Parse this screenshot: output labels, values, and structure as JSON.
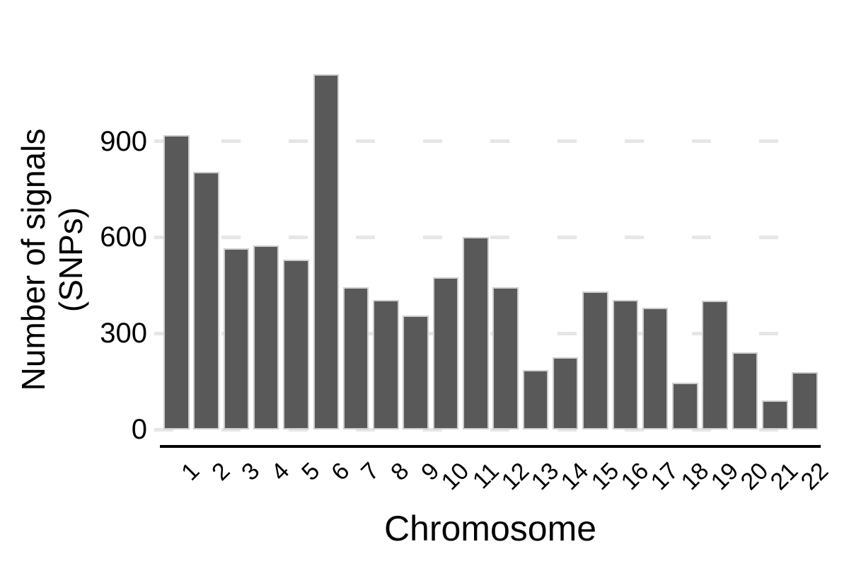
{
  "figure": {
    "background": "#ffffff"
  },
  "chart_data": {
    "type": "bar",
    "title": "",
    "xlabel": "Chromosome",
    "ylabel": "Number of signals (SNPs)",
    "ylabel_lines": [
      "Number of signals",
      "(SNPs)"
    ],
    "categories": [
      "1",
      "2",
      "3",
      "4",
      "5",
      "6",
      "7",
      "8",
      "9",
      "10",
      "11",
      "12",
      "13",
      "14",
      "15",
      "16",
      "17",
      "18",
      "19",
      "20",
      "21",
      "22"
    ],
    "values": [
      920,
      805,
      565,
      575,
      530,
      1110,
      445,
      405,
      355,
      475,
      600,
      445,
      185,
      225,
      430,
      405,
      380,
      145,
      403,
      240,
      90,
      178
    ],
    "yticks": [
      0,
      300,
      600,
      900
    ],
    "ylim": [
      0,
      1150
    ],
    "grid": "horizontal-dashed",
    "legend": "none",
    "bar_color": "#595959",
    "bar_border_color": "#cdcdcd",
    "gridline_color": "#e6e6e6",
    "axis_line_color": "#000000",
    "tick_label_color": "#000000",
    "x_tick_rotation_deg": 45
  }
}
